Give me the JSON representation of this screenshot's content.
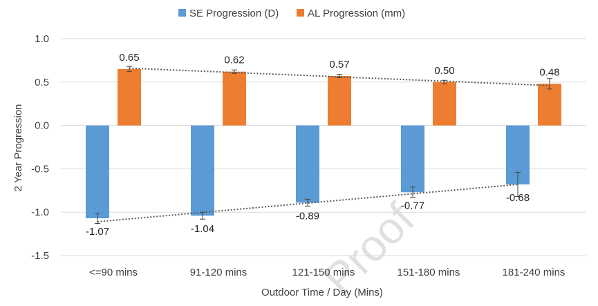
{
  "chart_data": {
    "type": "bar",
    "categories": [
      "<=90 mins",
      "91-120 mins",
      "121-150 mins",
      "151-180 mins",
      "181-240 mins"
    ],
    "series": [
      {
        "name": "SE Progression (D)",
        "color": "#5b9bd5",
        "values": [
          -1.07,
          -1.04,
          -0.89,
          -0.77,
          -0.68
        ],
        "labels": [
          "-1.07",
          "-1.04",
          "-0.89",
          "-0.77",
          "-0.68"
        ],
        "errors": [
          0.06,
          0.04,
          0.04,
          0.06,
          0.14
        ]
      },
      {
        "name": "AL Progression (mm)",
        "color": "#ed7d31",
        "values": [
          0.65,
          0.62,
          0.57,
          0.5,
          0.48
        ],
        "labels": [
          "0.65",
          "0.62",
          "0.57",
          "0.50",
          "0.48"
        ],
        "errors": [
          0.03,
          0.02,
          0.02,
          0.02,
          0.06
        ]
      }
    ],
    "trendlines": [
      {
        "series": "SE Progression (D)",
        "start": -1.11,
        "end": -0.68
      },
      {
        "series": "AL Progression (mm)",
        "start": 0.66,
        "end": 0.46
      }
    ],
    "xlabel": "Outdoor Time / Day (Mins)",
    "ylabel": "2 Year Progression",
    "ylim": [
      -1.5,
      1.0
    ],
    "yticks": [
      1.0,
      0.5,
      0.0,
      -0.5,
      -1.0,
      -1.5
    ],
    "ytick_labels": [
      "1.0",
      "0.5",
      "0.0",
      "-0.5",
      "-1.0",
      "-1.5"
    ],
    "legend_position": "top",
    "grid": true,
    "gridline_color": "#d9d9d9",
    "watermark": "Proof"
  }
}
